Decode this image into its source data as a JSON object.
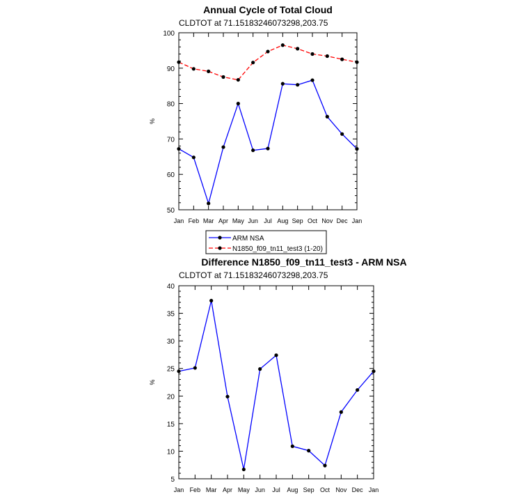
{
  "chart_data": [
    {
      "type": "line",
      "title": "Annual Cycle of Total Cloud",
      "subtitle": "CLDTOT at 71.15183246073298,203.75",
      "ylabel": "%",
      "xlabel": "",
      "categories": [
        "Jan",
        "Feb",
        "Mar",
        "Apr",
        "May",
        "Jun",
        "Jul",
        "Aug",
        "Sep",
        "Oct",
        "Nov",
        "Dec",
        "Jan"
      ],
      "ylim": [
        50,
        100
      ],
      "yticks": [
        50,
        60,
        70,
        80,
        90,
        100
      ],
      "series": [
        {
          "name": "ARM NSA",
          "color": "#0000ff",
          "dashed": false,
          "values": [
            67.2,
            64.8,
            51.8,
            67.7,
            80.0,
            66.8,
            67.3,
            85.6,
            85.3,
            86.6,
            76.3,
            71.4,
            67.2
          ]
        },
        {
          "name": "N1850_f09_tn11_test3 (1-20)",
          "color": "#ff0000",
          "dashed": true,
          "values": [
            91.7,
            89.8,
            89.1,
            87.5,
            86.7,
            91.6,
            94.7,
            96.5,
            95.5,
            94.0,
            93.4,
            92.5,
            91.7
          ]
        }
      ],
      "legend": "bottom"
    },
    {
      "type": "line",
      "title": "Difference N1850_f09_tn11_test3 - ARM NSA",
      "subtitle": "CLDTOT at 71.15183246073298,203.75",
      "ylabel": "%",
      "xlabel": "",
      "categories": [
        "Jan",
        "Feb",
        "Mar",
        "Apr",
        "May",
        "Jun",
        "Jul",
        "Aug",
        "Sep",
        "Oct",
        "Nov",
        "Dec",
        "Jan"
      ],
      "ylim": [
        5,
        40
      ],
      "yticks": [
        5,
        10,
        15,
        20,
        25,
        30,
        35,
        40
      ],
      "series": [
        {
          "name": "Difference",
          "color": "#0000ff",
          "dashed": false,
          "values": [
            24.5,
            25.1,
            37.3,
            19.9,
            6.7,
            24.9,
            27.4,
            10.9,
            10.1,
            7.4,
            17.1,
            21.1,
            24.5
          ]
        }
      ]
    }
  ]
}
